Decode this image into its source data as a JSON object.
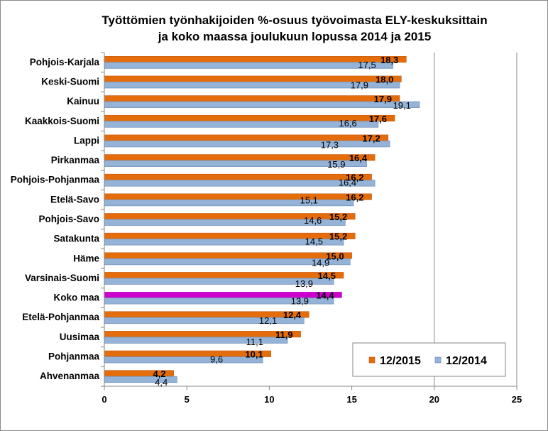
{
  "chart_data": {
    "type": "bar",
    "orientation": "horizontal",
    "title": "Työttömien työnhakijoiden %-osuus työvoimasta ELY-keskuksittain\nja koko maassa joulukuun lopussa 2014 ja 2015",
    "categories": [
      "Pohjois-Karjala",
      "Keski-Suomi",
      "Kainuu",
      "Kaakkois-Suomi",
      "Lappi",
      "Pirkanmaa",
      "Pohjois-Pohjanmaa",
      "Etelä-Savo",
      "Pohjois-Savo",
      "Satakunta",
      "Häme",
      "Varsinais-Suomi",
      "Koko maa",
      "Etelä-Pohjanmaa",
      "Uusimaa",
      "Pohjanmaa",
      "Ahvenanmaa"
    ],
    "series": [
      {
        "name": "12/2015",
        "color": "#E46C0A",
        "values": [
          18.3,
          18.0,
          17.9,
          17.6,
          17.2,
          16.4,
          16.2,
          16.2,
          15.2,
          15.2,
          15.0,
          14.5,
          14.4,
          12.4,
          11.9,
          10.1,
          4.2
        ],
        "labels": [
          "18,3",
          "18,0",
          "17,9",
          "17,6",
          "17,2",
          "16,4",
          "16,2",
          "16,2",
          "15,2",
          "15,2",
          "15,0",
          "14,5",
          "14,4",
          "12,4",
          "11,9",
          "10,1",
          "4,2"
        ]
      },
      {
        "name": "12/2014",
        "color": "#95B3D7",
        "values": [
          17.5,
          17.9,
          19.1,
          16.6,
          17.3,
          15.9,
          16.4,
          15.1,
          14.6,
          14.5,
          14.9,
          13.9,
          13.9,
          12.1,
          11.1,
          9.6,
          4.4
        ],
        "labels": [
          "17,5",
          "17,9",
          "19,1",
          "16,6",
          "17,3",
          "15,9",
          "16,4",
          "15,1",
          "14,6",
          "14,5",
          "14,9",
          "13,9",
          "13,9",
          "12,1",
          "11,1",
          "9,6",
          "4,4"
        ]
      }
    ],
    "highlight": {
      "series": 0,
      "index": 12,
      "color": "#CC00CC"
    },
    "xlim": [
      0,
      25
    ],
    "xticks": [
      0,
      5,
      10,
      15,
      20,
      25
    ],
    "x_gridlines": [
      20,
      25
    ],
    "legend": "bottom-right"
  }
}
